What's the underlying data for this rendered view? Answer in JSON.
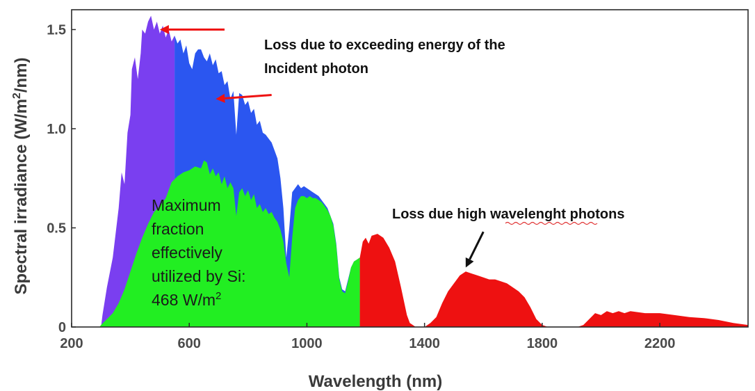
{
  "chart_data": {
    "type": "area",
    "xlabel": "Wavelength (nm)",
    "ylabel_prefix": "Spectral irradiance (W/m",
    "ylabel_sup": "2",
    "ylabel_suffix": "/nm)",
    "xlim": [
      200,
      2500
    ],
    "ylim": [
      0,
      1.6
    ],
    "x_ticks": [
      {
        "value": 200,
        "label": "200"
      },
      {
        "value": 600,
        "label": "600"
      },
      {
        "value": 1000,
        "label": "1000"
      },
      {
        "value": 1400,
        "label": "1400"
      },
      {
        "value": 1800,
        "label": "1800"
      },
      {
        "value": 2200,
        "label": "2200"
      }
    ],
    "y_ticks": [
      {
        "value": 0,
        "label": "0"
      },
      {
        "value": 0.5,
        "label": "0.5"
      },
      {
        "value": 1.0,
        "label": "1.0"
      },
      {
        "value": 1.5,
        "label": "1.5"
      }
    ],
    "grid": false,
    "series": [
      {
        "role": "total_irradiance_loss_purple",
        "color": "#7a3ff0",
        "x_range": [
          200,
          550
        ],
        "points": [
          [
            300,
            0
          ],
          [
            305,
            0.06
          ],
          [
            320,
            0.2
          ],
          [
            340,
            0.35
          ],
          [
            360,
            0.6
          ],
          [
            370,
            0.78
          ],
          [
            380,
            0.72
          ],
          [
            390,
            0.98
          ],
          [
            400,
            1.07
          ],
          [
            405,
            1.3
          ],
          [
            415,
            1.36
          ],
          [
            425,
            1.25
          ],
          [
            435,
            1.38
          ],
          [
            440,
            1.5
          ],
          [
            450,
            1.48
          ],
          [
            460,
            1.54
          ],
          [
            470,
            1.57
          ],
          [
            480,
            1.5
          ],
          [
            490,
            1.54
          ],
          [
            500,
            1.48
          ],
          [
            510,
            1.52
          ],
          [
            520,
            1.46
          ],
          [
            530,
            1.5
          ],
          [
            540,
            1.44
          ],
          [
            550,
            1.47
          ]
        ]
      },
      {
        "role": "total_irradiance_loss_blue",
        "color": "#2b56f0",
        "x_range": [
          550,
          1180
        ],
        "points": [
          [
            550,
            1.47
          ],
          [
            560,
            1.43
          ],
          [
            570,
            1.45
          ],
          [
            580,
            1.38
          ],
          [
            590,
            1.42
          ],
          [
            600,
            1.33
          ],
          [
            610,
            1.3
          ],
          [
            620,
            1.38
          ],
          [
            630,
            1.4
          ],
          [
            640,
            1.4
          ],
          [
            650,
            1.36
          ],
          [
            660,
            1.34
          ],
          [
            670,
            1.38
          ],
          [
            680,
            1.32
          ],
          [
            690,
            1.35
          ],
          [
            700,
            1.28
          ],
          [
            710,
            1.29
          ],
          [
            720,
            1.22
          ],
          [
            730,
            1.24
          ],
          [
            740,
            1.15
          ],
          [
            750,
            1.19
          ],
          [
            760,
            0.97
          ],
          [
            770,
            1.18
          ],
          [
            780,
            1.17
          ],
          [
            790,
            1.12
          ],
          [
            800,
            1.14
          ],
          [
            810,
            1.08
          ],
          [
            820,
            1.1
          ],
          [
            830,
            1.02
          ],
          [
            840,
            1.04
          ],
          [
            850,
            0.98
          ],
          [
            860,
            0.97
          ],
          [
            870,
            0.95
          ],
          [
            880,
            0.93
          ],
          [
            890,
            0.89
          ],
          [
            900,
            0.85
          ],
          [
            910,
            0.75
          ],
          [
            920,
            0.6
          ],
          [
            930,
            0.35
          ],
          [
            940,
            0.5
          ],
          [
            950,
            0.68
          ],
          [
            960,
            0.7
          ],
          [
            970,
            0.72
          ],
          [
            980,
            0.7
          ],
          [
            990,
            0.71
          ],
          [
            1000,
            0.7
          ],
          [
            1010,
            0.69
          ],
          [
            1020,
            0.68
          ],
          [
            1030,
            0.67
          ],
          [
            1040,
            0.66
          ],
          [
            1050,
            0.64
          ],
          [
            1060,
            0.62
          ],
          [
            1070,
            0.6
          ],
          [
            1080,
            0.56
          ],
          [
            1090,
            0.52
          ],
          [
            1100,
            0.42
          ],
          [
            1110,
            0.25
          ],
          [
            1120,
            0.19
          ],
          [
            1130,
            0.18
          ],
          [
            1140,
            0.24
          ],
          [
            1150,
            0.3
          ],
          [
            1160,
            0.33
          ],
          [
            1170,
            0.34
          ],
          [
            1180,
            0.35
          ]
        ]
      },
      {
        "role": "maximum_fraction_utilized_by_si",
        "color": "#22ee22",
        "x_range": [
          290,
          1180
        ],
        "points": [
          [
            295,
            0
          ],
          [
            300,
            0.01
          ],
          [
            320,
            0.04
          ],
          [
            340,
            0.07
          ],
          [
            360,
            0.12
          ],
          [
            380,
            0.19
          ],
          [
            400,
            0.28
          ],
          [
            420,
            0.37
          ],
          [
            440,
            0.45
          ],
          [
            460,
            0.52
          ],
          [
            480,
            0.58
          ],
          [
            500,
            0.61
          ],
          [
            520,
            0.65
          ],
          [
            540,
            0.73
          ],
          [
            560,
            0.76
          ],
          [
            580,
            0.78
          ],
          [
            600,
            0.79
          ],
          [
            620,
            0.81
          ],
          [
            640,
            0.8
          ],
          [
            650,
            0.84
          ],
          [
            660,
            0.83
          ],
          [
            670,
            0.77
          ],
          [
            680,
            0.8
          ],
          [
            690,
            0.76
          ],
          [
            700,
            0.78
          ],
          [
            710,
            0.72
          ],
          [
            720,
            0.76
          ],
          [
            730,
            0.7
          ],
          [
            740,
            0.73
          ],
          [
            750,
            0.7
          ],
          [
            760,
            0.56
          ],
          [
            770,
            0.68
          ],
          [
            780,
            0.7
          ],
          [
            790,
            0.66
          ],
          [
            800,
            0.69
          ],
          [
            810,
            0.64
          ],
          [
            820,
            0.67
          ],
          [
            830,
            0.6
          ],
          [
            840,
            0.62
          ],
          [
            850,
            0.58
          ],
          [
            860,
            0.6
          ],
          [
            870,
            0.57
          ],
          [
            880,
            0.58
          ],
          [
            890,
            0.55
          ],
          [
            900,
            0.53
          ],
          [
            910,
            0.49
          ],
          [
            920,
            0.43
          ],
          [
            930,
            0.32
          ],
          [
            940,
            0.25
          ],
          [
            950,
            0.45
          ],
          [
            960,
            0.6
          ],
          [
            970,
            0.64
          ],
          [
            980,
            0.66
          ],
          [
            990,
            0.66
          ],
          [
            1000,
            0.65
          ],
          [
            1010,
            0.66
          ],
          [
            1020,
            0.65
          ],
          [
            1030,
            0.65
          ],
          [
            1040,
            0.64
          ],
          [
            1050,
            0.63
          ],
          [
            1060,
            0.61
          ],
          [
            1070,
            0.59
          ],
          [
            1080,
            0.56
          ],
          [
            1090,
            0.51
          ],
          [
            1100,
            0.41
          ],
          [
            1110,
            0.24
          ],
          [
            1120,
            0.18
          ],
          [
            1130,
            0.17
          ],
          [
            1140,
            0.23
          ],
          [
            1150,
            0.3
          ],
          [
            1160,
            0.33
          ],
          [
            1170,
            0.34
          ],
          [
            1180,
            0.35
          ]
        ]
      },
      {
        "role": "loss_long_wavelength",
        "color": "#ee1111",
        "x_range": [
          1180,
          2500
        ],
        "points": [
          [
            1180,
            0.35
          ],
          [
            1190,
            0.43
          ],
          [
            1200,
            0.45
          ],
          [
            1210,
            0.42
          ],
          [
            1220,
            0.46
          ],
          [
            1240,
            0.47
          ],
          [
            1260,
            0.45
          ],
          [
            1280,
            0.4
          ],
          [
            1300,
            0.33
          ],
          [
            1320,
            0.2
          ],
          [
            1340,
            0.06
          ],
          [
            1350,
            0.02
          ],
          [
            1370,
            0
          ],
          [
            1400,
            0
          ],
          [
            1420,
            0.02
          ],
          [
            1440,
            0.05
          ],
          [
            1460,
            0.12
          ],
          [
            1480,
            0.18
          ],
          [
            1500,
            0.22
          ],
          [
            1520,
            0.26
          ],
          [
            1540,
            0.28
          ],
          [
            1560,
            0.27
          ],
          [
            1580,
            0.26
          ],
          [
            1600,
            0.25
          ],
          [
            1620,
            0.24
          ],
          [
            1640,
            0.24
          ],
          [
            1660,
            0.23
          ],
          [
            1680,
            0.22
          ],
          [
            1700,
            0.2
          ],
          [
            1720,
            0.18
          ],
          [
            1740,
            0.15
          ],
          [
            1760,
            0.1
          ],
          [
            1780,
            0.04
          ],
          [
            1800,
            0.01
          ],
          [
            1820,
            0
          ],
          [
            1920,
            0
          ],
          [
            1940,
            0.01
          ],
          [
            1960,
            0.04
          ],
          [
            1980,
            0.07
          ],
          [
            2000,
            0.06
          ],
          [
            2020,
            0.08
          ],
          [
            2040,
            0.07
          ],
          [
            2060,
            0.08
          ],
          [
            2080,
            0.07
          ],
          [
            2100,
            0.08
          ],
          [
            2150,
            0.07
          ],
          [
            2200,
            0.07
          ],
          [
            2250,
            0.06
          ],
          [
            2300,
            0.05
          ],
          [
            2350,
            0.045
          ],
          [
            2400,
            0.035
          ],
          [
            2450,
            0.02
          ],
          [
            2500,
            0.01
          ]
        ]
      }
    ],
    "annotations": {
      "top_loss_line1": "Loss due to exceeding energy of the",
      "top_loss_line2": "Incident photon",
      "long_wave_loss_prefix": "Loss due high ",
      "long_wave_loss_misspelled": "wavelenght",
      "long_wave_loss_suffix": " photons",
      "inside_line1": "Maximum",
      "inside_line2": "fraction",
      "inside_line3": "effectively",
      "inside_line4": "utilized by Si:",
      "inside_line5_prefix": "468 W/m",
      "inside_line5_sup": "2"
    },
    "arrows": [
      {
        "name": "red-arrow-top",
        "color": "#ee1111",
        "from": [
          720,
          1.5
        ],
        "to": [
          500,
          1.5
        ]
      },
      {
        "name": "red-arrow-middle",
        "color": "#ee1111",
        "from": [
          880,
          1.17
        ],
        "to": [
          690,
          1.15
        ]
      },
      {
        "name": "black-arrow",
        "color": "#111111",
        "from": [
          1600,
          0.48
        ],
        "to": [
          1540,
          0.3
        ]
      }
    ]
  }
}
